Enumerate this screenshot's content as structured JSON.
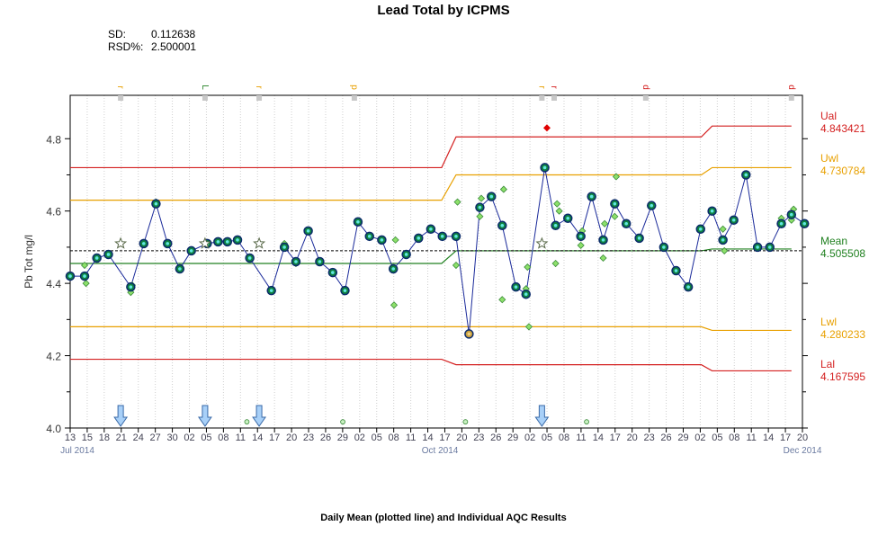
{
  "title": "Lead Total by ICPMS",
  "stats": {
    "sd_label": "SD:",
    "sd": "0.112638",
    "rsd_label": "RSD%:",
    "rsd": "2.500001"
  },
  "subtitle": "Daily Mean (plotted line) and Individual AQC Results",
  "chart_data": {
    "type": "line",
    "title": "Lead Total by ICPMS",
    "ylabel": "Pb Tot mg/l",
    "ylim": [
      4.0,
      4.92
    ],
    "yticks": [
      "4.0",
      "4.2",
      "4.4",
      "4.6",
      "4.8"
    ],
    "xticks": [
      "13",
      "15",
      "18",
      "21",
      "24",
      "27",
      "30",
      "02",
      "05",
      "08",
      "11",
      "14",
      "17",
      "20",
      "23",
      "26",
      "29",
      "02",
      "05",
      "08",
      "11",
      "14",
      "17",
      "20",
      "23",
      "26",
      "29",
      "02",
      "05",
      "08",
      "11",
      "14",
      "17",
      "20",
      "23",
      "26",
      "29",
      "02",
      "05",
      "08",
      "11",
      "14",
      "17",
      "20"
    ],
    "xtick_labels": [
      "13",
      "15",
      "18",
      "21",
      "24",
      "27",
      "30",
      "02",
      "05",
      "08",
      "11",
      "14",
      "17",
      "20",
      "23",
      "26",
      "29",
      "02",
      "05",
      "08",
      "11",
      "14",
      "17",
      "20",
      "23",
      "26",
      "29",
      "02",
      "05",
      "08",
      "11",
      "14",
      "17",
      "20",
      "23",
      "26",
      "29",
      "02",
      "05",
      "08",
      "11",
      "14",
      "17",
      "20"
    ],
    "month_labels": [
      {
        "label": "Jul 2014",
        "pos": 0
      },
      {
        "label": "Oct 2014",
        "pos": 0.505
      },
      {
        "label": "Dec 2014",
        "pos": 1.0
      }
    ],
    "control_limits": {
      "ual": {
        "label": "Ual",
        "value": "4.843421",
        "color": "#d42020"
      },
      "uwl": {
        "label": "Uwl",
        "value": "4.730784",
        "color": "#e8a000"
      },
      "mean": {
        "label": "Mean",
        "value": "4.505508",
        "color": "#208020"
      },
      "lwl": {
        "label": "Lwl",
        "value": "4.280233",
        "color": "#e8a000"
      },
      "lal": {
        "label": "Lal",
        "value": "4.167595",
        "color": "#d42020"
      }
    },
    "ual_segments": [
      [
        0,
        4.72
      ],
      [
        0.515,
        4.72
      ],
      [
        0.535,
        4.805
      ],
      [
        0.875,
        4.805
      ],
      [
        0.89,
        4.835
      ],
      [
        1.0,
        4.835
      ]
    ],
    "uwl_segments": [
      [
        0,
        4.63
      ],
      [
        0.515,
        4.63
      ],
      [
        0.535,
        4.7
      ],
      [
        0.875,
        4.7
      ],
      [
        0.89,
        4.72
      ],
      [
        1.0,
        4.72
      ]
    ],
    "mean_segments": [
      [
        0,
        4.455
      ],
      [
        0.515,
        4.455
      ],
      [
        0.535,
        4.49
      ],
      [
        0.875,
        4.49
      ],
      [
        0.89,
        4.495
      ],
      [
        1.0,
        4.495
      ]
    ],
    "lwl_segments": [
      [
        0,
        4.28
      ],
      [
        0.515,
        4.28
      ],
      [
        0.535,
        4.28
      ],
      [
        0.875,
        4.28
      ],
      [
        0.89,
        4.27
      ],
      [
        1.0,
        4.27
      ]
    ],
    "lal_segments": [
      [
        0,
        4.19
      ],
      [
        0.515,
        4.19
      ],
      [
        0.535,
        4.175
      ],
      [
        0.875,
        4.175
      ],
      [
        0.89,
        4.158
      ],
      [
        1.0,
        4.158
      ]
    ],
    "overall_mean": 4.49,
    "daily_mean": [
      [
        0.0,
        4.42
      ],
      [
        0.02,
        4.42
      ],
      [
        0.037,
        4.47
      ],
      [
        0.053,
        4.48
      ],
      [
        0.084,
        4.39
      ],
      [
        0.102,
        4.51
      ],
      [
        0.119,
        4.62
      ],
      [
        0.135,
        4.51
      ],
      [
        0.152,
        4.44
      ],
      [
        0.168,
        4.49
      ],
      [
        0.19,
        4.51
      ],
      [
        0.205,
        4.515
      ],
      [
        0.218,
        4.515
      ],
      [
        0.232,
        4.52
      ],
      [
        0.249,
        4.47
      ],
      [
        0.279,
        4.38
      ],
      [
        0.297,
        4.5
      ],
      [
        0.313,
        4.46
      ],
      [
        0.33,
        4.545
      ],
      [
        0.346,
        4.46
      ],
      [
        0.364,
        4.43
      ],
      [
        0.381,
        4.38
      ],
      [
        0.399,
        4.57
      ],
      [
        0.415,
        4.53
      ],
      [
        0.432,
        4.52
      ],
      [
        0.448,
        4.44
      ],
      [
        0.466,
        4.48
      ],
      [
        0.483,
        4.525
      ],
      [
        0.5,
        4.55
      ],
      [
        0.516,
        4.53
      ],
      [
        0.535,
        4.53
      ],
      [
        0.553,
        4.26
      ],
      [
        0.568,
        4.61
      ],
      [
        0.584,
        4.64
      ],
      [
        0.599,
        4.56
      ],
      [
        0.618,
        4.39
      ],
      [
        0.632,
        4.37
      ],
      [
        0.658,
        4.72
      ],
      [
        0.673,
        4.56
      ],
      [
        0.69,
        4.58
      ],
      [
        0.708,
        4.53
      ],
      [
        0.723,
        4.64
      ],
      [
        0.739,
        4.52
      ],
      [
        0.755,
        4.62
      ],
      [
        0.771,
        4.565
      ],
      [
        0.789,
        4.525
      ],
      [
        0.806,
        4.615
      ],
      [
        0.823,
        4.5
      ],
      [
        0.84,
        4.435
      ],
      [
        0.857,
        4.39
      ],
      [
        0.874,
        4.55
      ],
      [
        0.89,
        4.6
      ],
      [
        0.905,
        4.52
      ],
      [
        0.92,
        4.575
      ],
      [
        0.937,
        4.7
      ],
      [
        0.953,
        4.5
      ],
      [
        0.97,
        4.5
      ],
      [
        0.986,
        4.565
      ],
      [
        1.0,
        4.59
      ],
      [
        1.018,
        4.565
      ]
    ],
    "individual_results": [
      [
        0.02,
        4.45
      ],
      [
        0.022,
        4.4
      ],
      [
        0.084,
        4.375
      ],
      [
        0.086,
        4.395
      ],
      [
        0.119,
        4.625
      ],
      [
        0.297,
        4.51
      ],
      [
        0.313,
        4.455
      ],
      [
        0.449,
        4.34
      ],
      [
        0.451,
        4.52
      ],
      [
        0.535,
        4.45
      ],
      [
        0.537,
        4.625
      ],
      [
        0.568,
        4.585
      ],
      [
        0.57,
        4.635
      ],
      [
        0.599,
        4.355
      ],
      [
        0.601,
        4.66
      ],
      [
        0.632,
        4.385
      ],
      [
        0.634,
        4.445
      ],
      [
        0.636,
        4.28
      ],
      [
        0.673,
        4.455
      ],
      [
        0.675,
        4.62
      ],
      [
        0.678,
        4.6
      ],
      [
        0.708,
        4.505
      ],
      [
        0.71,
        4.545
      ],
      [
        0.739,
        4.47
      ],
      [
        0.741,
        4.565
      ],
      [
        0.755,
        4.585
      ],
      [
        0.757,
        4.695
      ],
      [
        0.905,
        4.55
      ],
      [
        0.907,
        4.49
      ],
      [
        0.986,
        4.58
      ],
      [
        1.0,
        4.575
      ],
      [
        1.003,
        4.605
      ]
    ],
    "outlier": [
      0.661,
      4.83
    ],
    "stars": [
      [
        0.07,
        4.51
      ],
      [
        0.187,
        4.51
      ],
      [
        0.262,
        4.51
      ],
      [
        0.654,
        4.51
      ]
    ],
    "small_circles": [
      [
        0.245,
        4.017
      ],
      [
        0.378,
        4.017
      ],
      [
        0.548,
        4.017
      ],
      [
        0.716,
        4.017
      ]
    ],
    "arrows": [
      0.07,
      0.187,
      0.262,
      0.654
    ],
    "top_markers": [
      {
        "pos": 0.07,
        "label": "r",
        "color": "#e8a000"
      },
      {
        "pos": 0.187,
        "label": "L",
        "color": "#208020"
      },
      {
        "pos": 0.262,
        "label": "r",
        "color": "#e8a000"
      },
      {
        "pos": 0.394,
        "label": "p",
        "color": "#e8a000"
      },
      {
        "pos": 0.654,
        "label": "r",
        "color": "#e8a000"
      },
      {
        "pos": 0.671,
        "label": "r",
        "color": "#d42020"
      },
      {
        "pos": 0.798,
        "label": "d",
        "color": "#d42020"
      },
      {
        "pos": 1.0,
        "label": "d",
        "color": "#d42020"
      }
    ]
  }
}
